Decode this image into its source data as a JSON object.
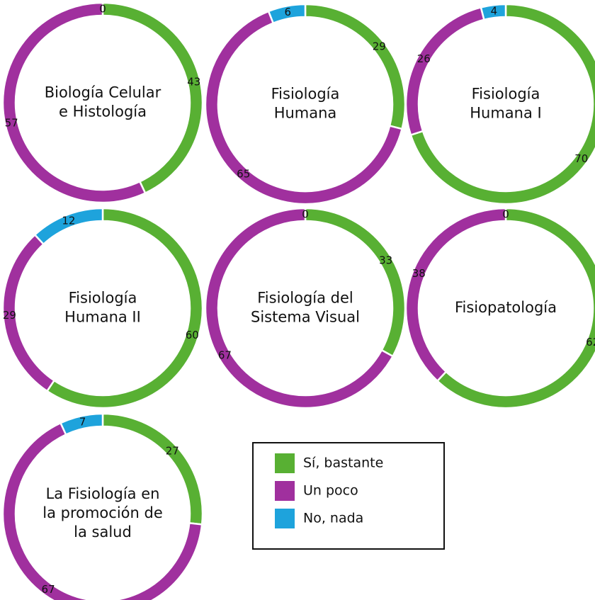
{
  "legend": {
    "labels": [
      "Sí, bastante",
      "Un poco",
      "No, nada"
    ],
    "colors": [
      "#58b033",
      "#a0309e",
      "#1ea3dc"
    ]
  },
  "chart_data": [
    {
      "type": "donut",
      "title": [
        "Biología Celular",
        "e Histología"
      ],
      "values": [
        43,
        57,
        0
      ]
    },
    {
      "type": "donut",
      "title": [
        "Fisiología",
        "Humana"
      ],
      "values": [
        29,
        65,
        6
      ]
    },
    {
      "type": "donut",
      "title": [
        "Fisiología",
        "Humana I"
      ],
      "values": [
        70,
        26,
        4
      ]
    },
    {
      "type": "donut",
      "title": [
        "Fisiología",
        "Humana II"
      ],
      "values": [
        60,
        29,
        12
      ]
    },
    {
      "type": "donut",
      "title": [
        "Fisiología del",
        "Sistema Visual"
      ],
      "values": [
        33,
        67,
        0
      ]
    },
    {
      "type": "donut",
      "title": [
        "Fisiopatología"
      ],
      "values": [
        62,
        38,
        0
      ]
    },
    {
      "type": "donut",
      "title": [
        "La Fisiología en",
        "la promoción de",
        "la salud"
      ],
      "values": [
        27,
        67,
        7
      ]
    }
  ]
}
